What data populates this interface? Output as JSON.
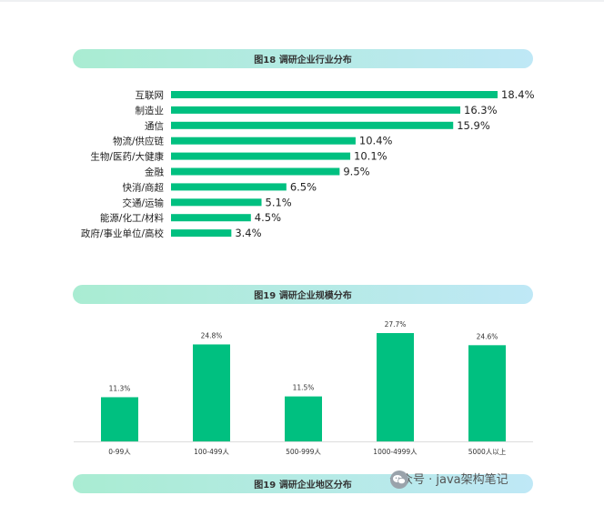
{
  "chart_data": [
    {
      "type": "bar",
      "orientation": "horizontal",
      "title": "图18 调研企业行业分布",
      "categories": [
        "互联网",
        "制造业",
        "通信",
        "物流/供应链",
        "生物/医药/大健康",
        "金融",
        "快消/商超",
        "交通/运输",
        "能源/化工/材料",
        "政府/事业单位/高校"
      ],
      "values": [
        18.4,
        16.3,
        15.9,
        10.4,
        10.1,
        9.5,
        6.5,
        5.1,
        4.5,
        3.4
      ],
      "value_labels": [
        "18.4%",
        "16.3%",
        "15.9%",
        "10.4%",
        "10.1%",
        "9.5%",
        "6.5%",
        "5.1%",
        "4.5%",
        "3.4%"
      ],
      "xlim": [
        0,
        18.4
      ],
      "grid": false,
      "color": "#00c080"
    },
    {
      "type": "bar",
      "orientation": "vertical",
      "title": "图19 调研企业规模分布",
      "categories": [
        "0-99人",
        "100-499人",
        "500-999人",
        "1000-4999人",
        "5000人以上"
      ],
      "values": [
        11.3,
        24.8,
        11.5,
        27.7,
        24.6
      ],
      "value_labels": [
        "11.3%",
        "24.8%",
        "11.5%",
        "27.7%",
        "24.6%"
      ],
      "ylim": [
        0,
        27.7
      ],
      "grid": false,
      "color": "#00c080"
    }
  ],
  "next_section": {
    "title": "图19 调研企业地区分布"
  },
  "watermark": {
    "text": "公众号 · java架构笔记",
    "icon": "wechat-icon"
  }
}
